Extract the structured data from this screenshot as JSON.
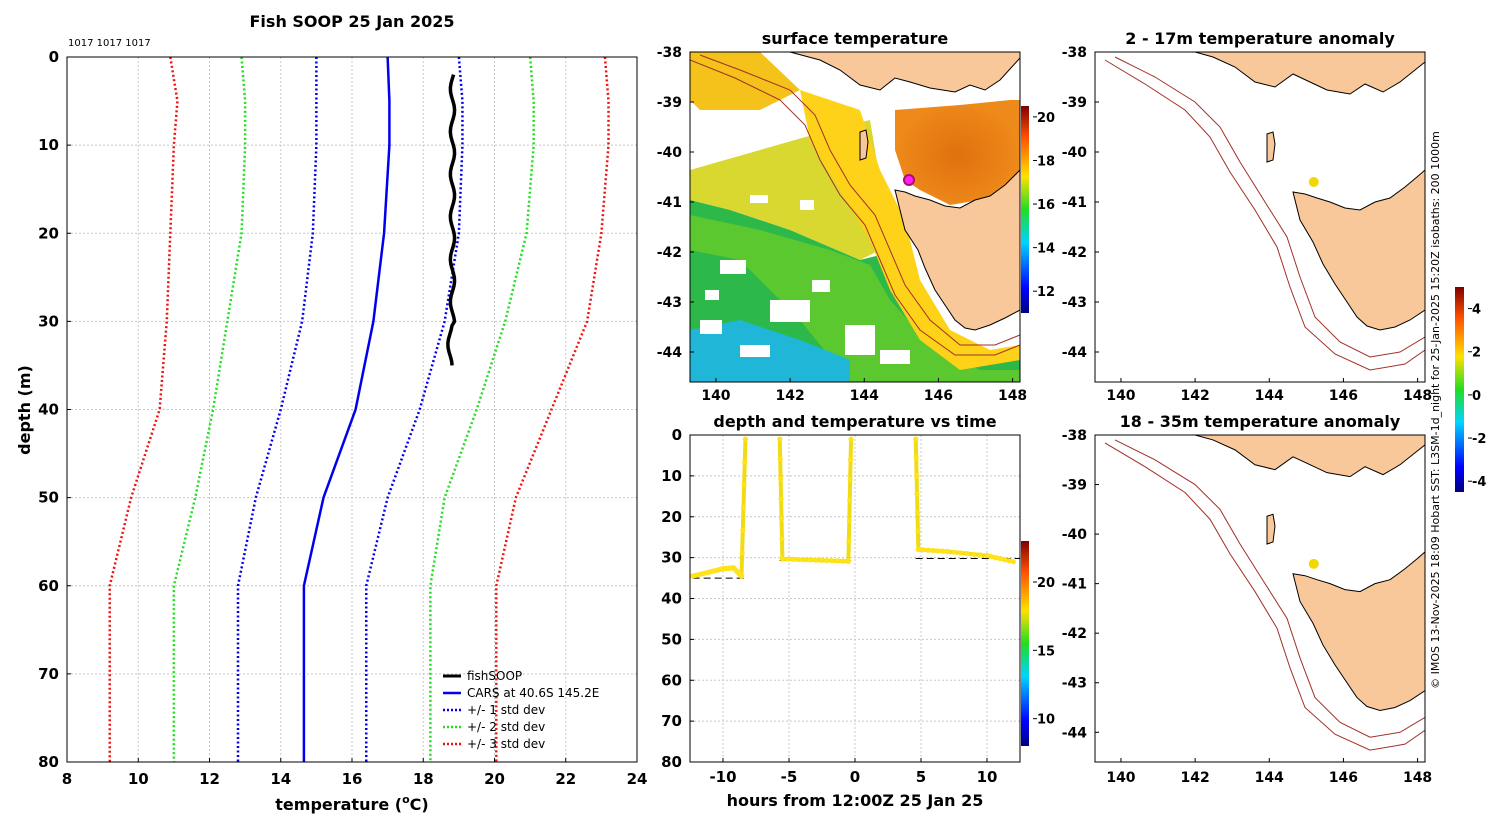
{
  "profile": {
    "title": "Fish SOOP 25 Jan 2025",
    "counts_label": "1017 1017 1017",
    "xlabel": "temperature (",
    "xlabel_unit": "o",
    "xlabel_tail": "C)",
    "ylabel": "depth (m)",
    "xlim": [
      8,
      24
    ],
    "ylim": [
      0,
      80
    ],
    "xticks": [
      "8",
      "10",
      "12",
      "14",
      "16",
      "18",
      "20",
      "22",
      "24"
    ],
    "yticks": [
      "0",
      "10",
      "20",
      "30",
      "40",
      "50",
      "60",
      "70",
      "80"
    ],
    "colors": {
      "fishSOOP": "#000000",
      "cars": "#0000ee",
      "std1": "#0000ee",
      "std2": "#22dd22",
      "std3": "#ee1111"
    },
    "legend": [
      "fishSOOP",
      "CARS at 40.6S 145.2E",
      "+/- 1 std dev",
      "+/- 2 std dev",
      "+/- 3 std dev"
    ]
  },
  "sst_map": {
    "title": "surface temperature",
    "xticks": [
      "140",
      "142",
      "144",
      "146",
      "148"
    ],
    "yticks": [
      "-38",
      "-39",
      "-40",
      "-41",
      "-42",
      "-43",
      "-44"
    ],
    "colorbar_ticks": [
      "20",
      "18",
      "16",
      "14",
      "12"
    ]
  },
  "timeseries": {
    "title": "depth and temperature vs time",
    "xlabel": "hours from 12:00Z 25 Jan 25",
    "xticks": [
      "-10",
      "-5",
      "0",
      "5",
      "10"
    ],
    "yticks": [
      "0",
      "10",
      "20",
      "30",
      "40",
      "50",
      "60",
      "70",
      "80"
    ],
    "colorbar_ticks": [
      "20",
      "15",
      "10"
    ]
  },
  "anom_top": {
    "title": "2 - 17m temperature anomaly",
    "xticks": [
      "140",
      "142",
      "144",
      "146",
      "148"
    ],
    "yticks": [
      "-38",
      "-39",
      "-40",
      "-41",
      "-42",
      "-43",
      "-44"
    ]
  },
  "anom_bottom": {
    "title": "18 - 35m temperature anomaly",
    "xticks": [
      "140",
      "142",
      "144",
      "146",
      "148"
    ],
    "yticks": [
      "-38",
      "-39",
      "-40",
      "-41",
      "-42",
      "-43",
      "-44"
    ]
  },
  "anom_colorbar_ticks": [
    "4",
    "2",
    "0",
    "-2",
    "-4"
  ],
  "credit": "© IMOS 13-Nov-2025 18:09 Hobart SST: L3SM-1d_night for 25-Jan-2025 15:20Z isobaths: 200  1000m",
  "chart_data": [
    {
      "type": "line",
      "title": "Fish SOOP 25 Jan 2025",
      "xlabel": "temperature (oC)",
      "ylabel": "depth (m)",
      "xlim": [
        8,
        24
      ],
      "ylim": [
        80,
        0
      ],
      "grid": true,
      "legend_position": "bottom-right",
      "depth": [
        0,
        5,
        10,
        20,
        30,
        40,
        50,
        60,
        70,
        80
      ],
      "series": [
        {
          "name": "CARS at 40.6S 145.2E",
          "style": "solid",
          "values": [
            17.0,
            17.05,
            17.05,
            16.9,
            16.6,
            16.1,
            15.2,
            14.65,
            14.65,
            14.65
          ]
        },
        {
          "name": "+/- 1 std dev (upper)",
          "style": "dotted",
          "values": [
            19.0,
            19.1,
            19.1,
            19.0,
            18.6,
            17.9,
            17.0,
            16.4,
            16.4,
            16.4
          ]
        },
        {
          "name": "+/- 1 std dev (lower)",
          "style": "dotted",
          "values": [
            15.0,
            15.0,
            15.0,
            14.9,
            14.6,
            14.0,
            13.3,
            12.8,
            12.8,
            12.8
          ]
        },
        {
          "name": "+/- 2 std dev (upper)",
          "style": "dotted",
          "values": [
            21.0,
            21.1,
            21.1,
            20.9,
            20.3,
            19.5,
            18.6,
            18.2,
            18.2,
            18.2
          ]
        },
        {
          "name": "+/- 2 std dev (lower)",
          "style": "dotted",
          "values": [
            12.9,
            13.0,
            13.0,
            12.9,
            12.5,
            12.1,
            11.6,
            11.0,
            11.0,
            11.0
          ]
        },
        {
          "name": "+/- 3 std dev (upper)",
          "style": "dotted",
          "values": [
            23.1,
            23.2,
            23.2,
            23.0,
            22.6,
            21.6,
            20.6,
            20.05,
            20.05,
            20.05
          ]
        },
        {
          "name": "+/- 3 std dev (lower)",
          "style": "dotted",
          "values": [
            10.9,
            11.1,
            11.0,
            10.9,
            10.8,
            10.6,
            9.8,
            9.2,
            9.2,
            9.2
          ]
        }
      ],
      "fishSOOP": {
        "depth_range": [
          2,
          35
        ],
        "temperature_range": [
          18.75,
          18.9
        ],
        "mean_temperature": 18.8
      }
    },
    {
      "type": "scatter",
      "title": "depth and temperature vs time",
      "xlabel": "hours from 12:00Z 25 Jan 25",
      "ylabel": "depth (m)",
      "xlim": [
        -12.5,
        12.5
      ],
      "ylim": [
        80,
        0
      ],
      "colorbar_range": [
        8,
        23
      ],
      "color_value": 19.5,
      "segments": [
        {
          "hours": [
            -12.3,
            -11,
            -10,
            -9.2,
            -8.6,
            -8.3
          ],
          "depth": [
            34.5,
            33.5,
            32.7,
            32.5,
            34.5,
            1
          ]
        },
        {
          "hours": [
            -5.7,
            -5.5,
            -3,
            -0.5,
            -0.3
          ],
          "depth": [
            1,
            30.3,
            30.6,
            30.9,
            1
          ]
        },
        {
          "hours": [
            4.6,
            4.8,
            7,
            10,
            12
          ],
          "depth": [
            1,
            28,
            28.5,
            29.5,
            31
          ]
        }
      ],
      "mean_depths": [
        {
          "hours": [
            -12.3,
            -8.3
          ],
          "depth": 35
        },
        {
          "hours": [
            -5.7,
            -0.3
          ],
          "depth": 30.7
        },
        {
          "hours": [
            4.6,
            12.5
          ],
          "depth": 30.2
        }
      ]
    },
    {
      "type": "heatmap",
      "title": "surface temperature",
      "lon_range": [
        139.3,
        148.2
      ],
      "lat_range": [
        -44.6,
        -38
      ],
      "colorbar_range": [
        11,
        20.5
      ],
      "observation_point": {
        "lon": 145.2,
        "lat": -40.6
      }
    },
    {
      "type": "heatmap",
      "title": "2 - 17m temperature anomaly",
      "lon_range": [
        139.3,
        148.2
      ],
      "lat_range": [
        -44.6,
        -38
      ],
      "colorbar_range": [
        -4.5,
        5
      ],
      "points": [
        {
          "lon": 145.2,
          "lat": -40.6,
          "anomaly": 2.8
        }
      ]
    },
    {
      "type": "heatmap",
      "title": "18 - 35m temperature anomaly",
      "lon_range": [
        139.3,
        148.2
      ],
      "lat_range": [
        -44.6,
        -38
      ],
      "colorbar_range": [
        -4.5,
        5
      ],
      "points": [
        {
          "lon": 145.2,
          "lat": -40.6,
          "anomaly": 2.6
        }
      ]
    }
  ]
}
